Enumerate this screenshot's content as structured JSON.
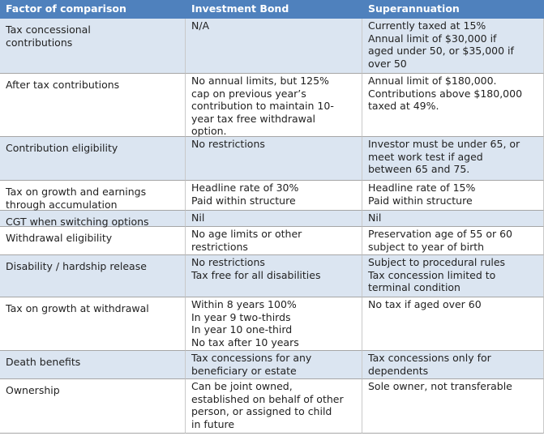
{
  "table": {
    "header": [
      "Factor of comparison",
      "Investment Bond",
      "Superannuation"
    ],
    "rows": [
      [
        [
          "Tax concessional",
          "contributions"
        ],
        [
          "N/A"
        ],
        [
          "Currently taxed at 15%",
          "Annual limit of $30,000 if",
          "aged under 50, or $35,000 if",
          "over 50"
        ]
      ],
      [
        [
          "After tax contributions"
        ],
        [
          "No annual limits, but 125%",
          "cap on previous year’s",
          "contribution to maintain 10-",
          "year tax free withdrawal",
          "option."
        ],
        [
          "Annual limit of $180,000.",
          "Contributions above $180,000",
          "taxed at 49%."
        ]
      ],
      [
        [
          "Contribution eligibility"
        ],
        [
          "No restrictions"
        ],
        [
          "Investor must be under 65, or",
          "meet work test if aged",
          "between 65 and 75."
        ]
      ],
      [
        [
          "Tax on growth and earnings",
          "through accumulation"
        ],
        [
          "Headline rate of 30%",
          "Paid within structure"
        ],
        [
          "Headline rate of 15%",
          "Paid within structure"
        ]
      ],
      [
        [
          "CGT when switching options"
        ],
        [
          "Nil"
        ],
        [
          "Nil"
        ]
      ],
      [
        [
          "Withdrawal eligibility"
        ],
        [
          "No age limits or other",
          "restrictions"
        ],
        [
          "Preservation age of 55 or 60",
          "subject to year of birth"
        ]
      ],
      [
        [
          "Disability / hardship release"
        ],
        [
          "No restrictions",
          "Tax free for all disabilities"
        ],
        [
          "Subject to procedural rules",
          "Tax concession limited to",
          "terminal condition"
        ]
      ],
      [
        [
          "Tax on growth at withdrawal"
        ],
        [
          "Within 8 years 100%",
          "In year 9 two-thirds",
          "In year 10 one-third",
          "No tax after 10 years"
        ],
        [
          "No tax if aged over 60"
        ]
      ],
      [
        [
          "Death benefits"
        ],
        [
          "Tax concessions for any",
          "beneficiary or estate"
        ],
        [
          "Tax concessions only for",
          "dependents"
        ]
      ],
      [
        [
          "Ownership"
        ],
        [
          "Can be joint owned,",
          "established on behalf of other",
          "person, or assigned to child",
          "in future"
        ],
        [
          "Sole owner, not transferable"
        ]
      ]
    ]
  }
}
